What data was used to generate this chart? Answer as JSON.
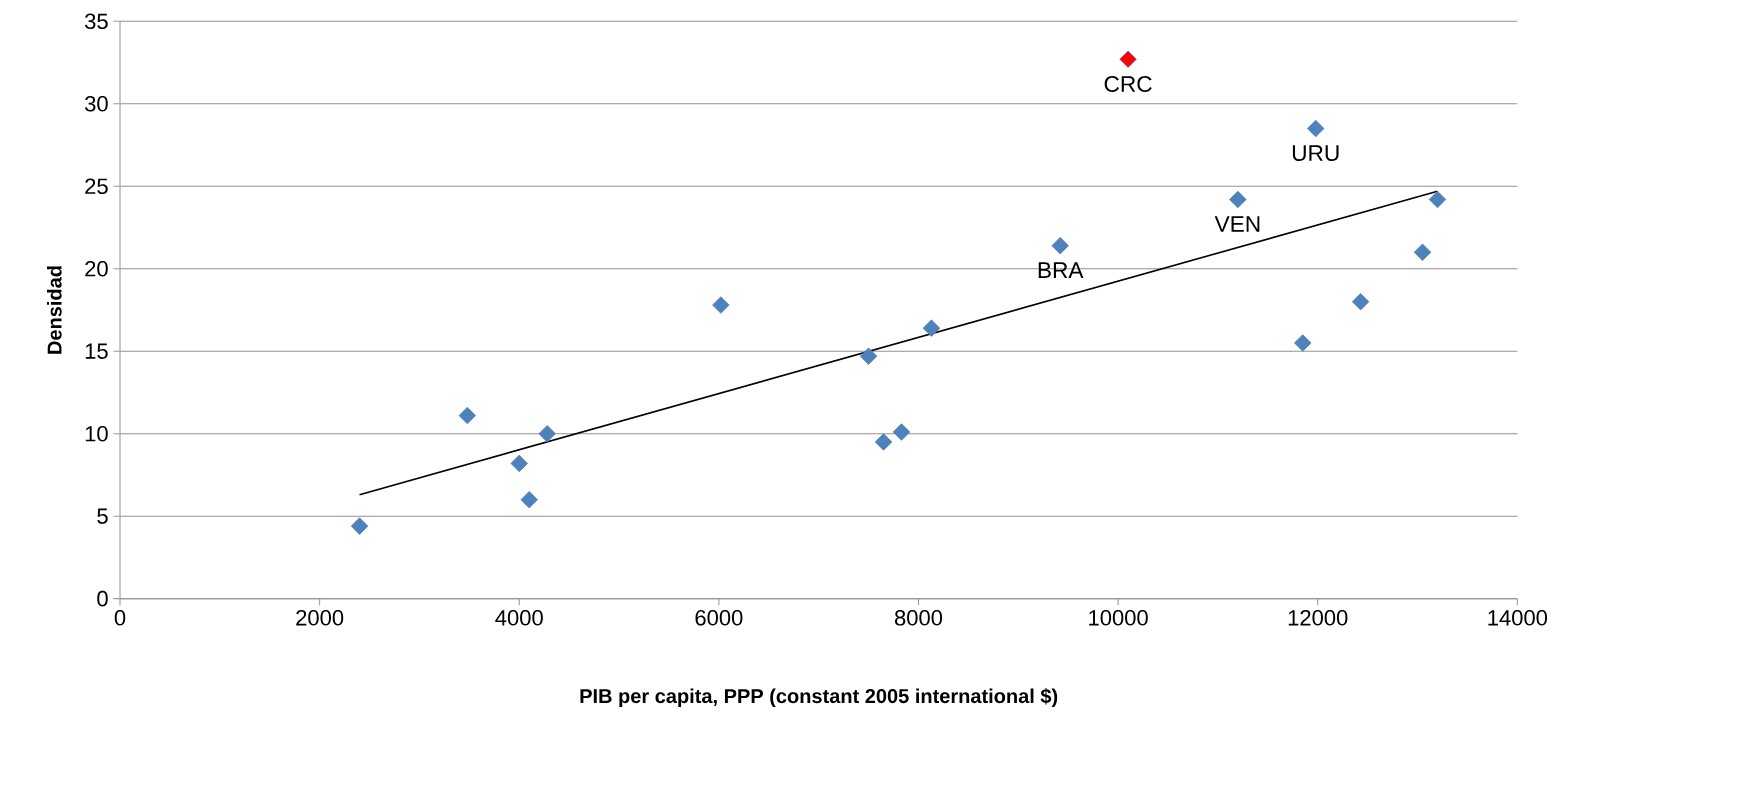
{
  "chart_data": {
    "type": "scatter",
    "xlabel": "PIB per capita,  PPP (constant  2005 international $)",
    "ylabel": "Densidad",
    "xlim": [
      0,
      14000
    ],
    "xticks": [
      0,
      2000,
      4000,
      6000,
      8000,
      10000,
      12000,
      14000
    ],
    "ylim": [
      0,
      35
    ],
    "yticks": [
      0,
      5,
      10,
      15,
      20,
      25,
      30,
      35
    ],
    "grid": "y",
    "marker": "diamond",
    "series": [
      {
        "x": [
          2400,
          3480,
          4000,
          4100,
          4280,
          6020,
          7500,
          7650,
          7830,
          8130,
          9420,
          10100,
          11200,
          11850,
          11980,
          12430,
          13050,
          13200
        ],
        "values": [
          4.4,
          11.1,
          8.2,
          6.0,
          10.0,
          17.8,
          14.7,
          9.5,
          10.1,
          16.4,
          21.4,
          32.7,
          24.2,
          15.5,
          28.5,
          18.0,
          21.0,
          24.2
        ],
        "colors": [
          "#4f81bd",
          "#4f81bd",
          "#4f81bd",
          "#4f81bd",
          "#4f81bd",
          "#4f81bd",
          "#4f81bd",
          "#4f81bd",
          "#4f81bd",
          "#4f81bd",
          "#4f81bd",
          "#ff0000",
          "#4f81bd",
          "#4f81bd",
          "#4f81bd",
          "#4f81bd",
          "#4f81bd",
          "#4f81bd"
        ]
      },
      {
        "type": "line",
        "x": [
          2400,
          13200
        ],
        "values": [
          6.3,
          24.7
        ],
        "color": "#000000",
        "marker": "none"
      }
    ],
    "annotations": [
      {
        "text": "BRA",
        "x": 9420,
        "y": 21.4
      },
      {
        "text": "CRC",
        "x": 10100,
        "y": 32.7
      },
      {
        "text": "VEN",
        "x": 11200,
        "y": 24.2
      },
      {
        "text": "URU",
        "x": 11980,
        "y": 28.5
      }
    ]
  }
}
